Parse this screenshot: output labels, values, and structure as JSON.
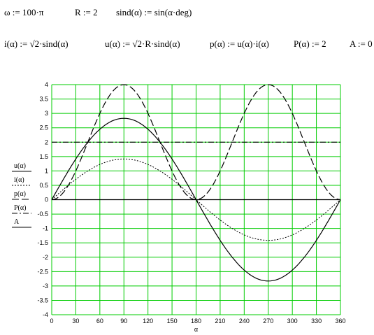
{
  "equations": {
    "omega": "ω := 100·π",
    "r": "R := 2",
    "sind": "sind(α) := sin(α·deg)",
    "i_func": "i(α) := √2·sind(α)",
    "u_func": "u(α) := √2·R·sind(α)",
    "p_func": "p(α) := u(α)·i(α)",
    "p_const": "P(α) := 2",
    "a_const": "A := 0"
  },
  "chart_data": {
    "type": "line",
    "xlabel": "α",
    "xlim": [
      0,
      360
    ],
    "ylim": [
      -4,
      4
    ],
    "x_ticks": [
      "0",
      "30",
      "60",
      "90",
      "120",
      "150",
      "180",
      "210",
      "240",
      "270",
      "300",
      "330",
      "360"
    ],
    "y_ticks": [
      "4",
      "3.5",
      "3",
      "2.5",
      "2",
      "1.5",
      "1",
      "0.5",
      "0",
      "-0.5",
      "-1",
      "-1.5",
      "-2",
      "-2.5",
      "-3",
      "-3.5",
      "-4"
    ],
    "grid": true,
    "grid_color": "#00cc00",
    "line_color": "#000000",
    "legend": {
      "placement": "left",
      "entries": [
        "u(α)",
        "i(α)",
        "p(α)",
        "P(α)",
        "A"
      ]
    },
    "series": [
      {
        "name": "u(α)",
        "style": "solid",
        "x": [
          0,
          30,
          60,
          90,
          120,
          150,
          180,
          210,
          240,
          270,
          300,
          330,
          360
        ],
        "values": [
          0,
          1.414,
          2.449,
          2.828,
          2.449,
          1.414,
          0,
          -1.414,
          -2.449,
          -2.828,
          -2.449,
          -1.414,
          0
        ]
      },
      {
        "name": "i(α)",
        "style": "dotted",
        "x": [
          0,
          30,
          60,
          90,
          120,
          150,
          180,
          210,
          240,
          270,
          300,
          330,
          360
        ],
        "values": [
          0,
          0.707,
          1.225,
          1.414,
          1.225,
          0.707,
          0,
          -0.707,
          -1.225,
          -1.414,
          -1.225,
          -0.707,
          0
        ]
      },
      {
        "name": "p(α)",
        "style": "dashed",
        "x": [
          0,
          30,
          60,
          90,
          120,
          150,
          180,
          210,
          240,
          270,
          300,
          330,
          360
        ],
        "values": [
          0,
          1,
          3,
          4,
          3,
          1,
          0,
          1,
          3,
          4,
          3,
          1,
          0
        ]
      },
      {
        "name": "P(α)",
        "style": "dash-dot",
        "x": [
          0,
          360
        ],
        "values": [
          2,
          2
        ]
      },
      {
        "name": "A",
        "style": "solid",
        "x": [
          0,
          360
        ],
        "values": [
          0,
          0
        ]
      }
    ]
  }
}
